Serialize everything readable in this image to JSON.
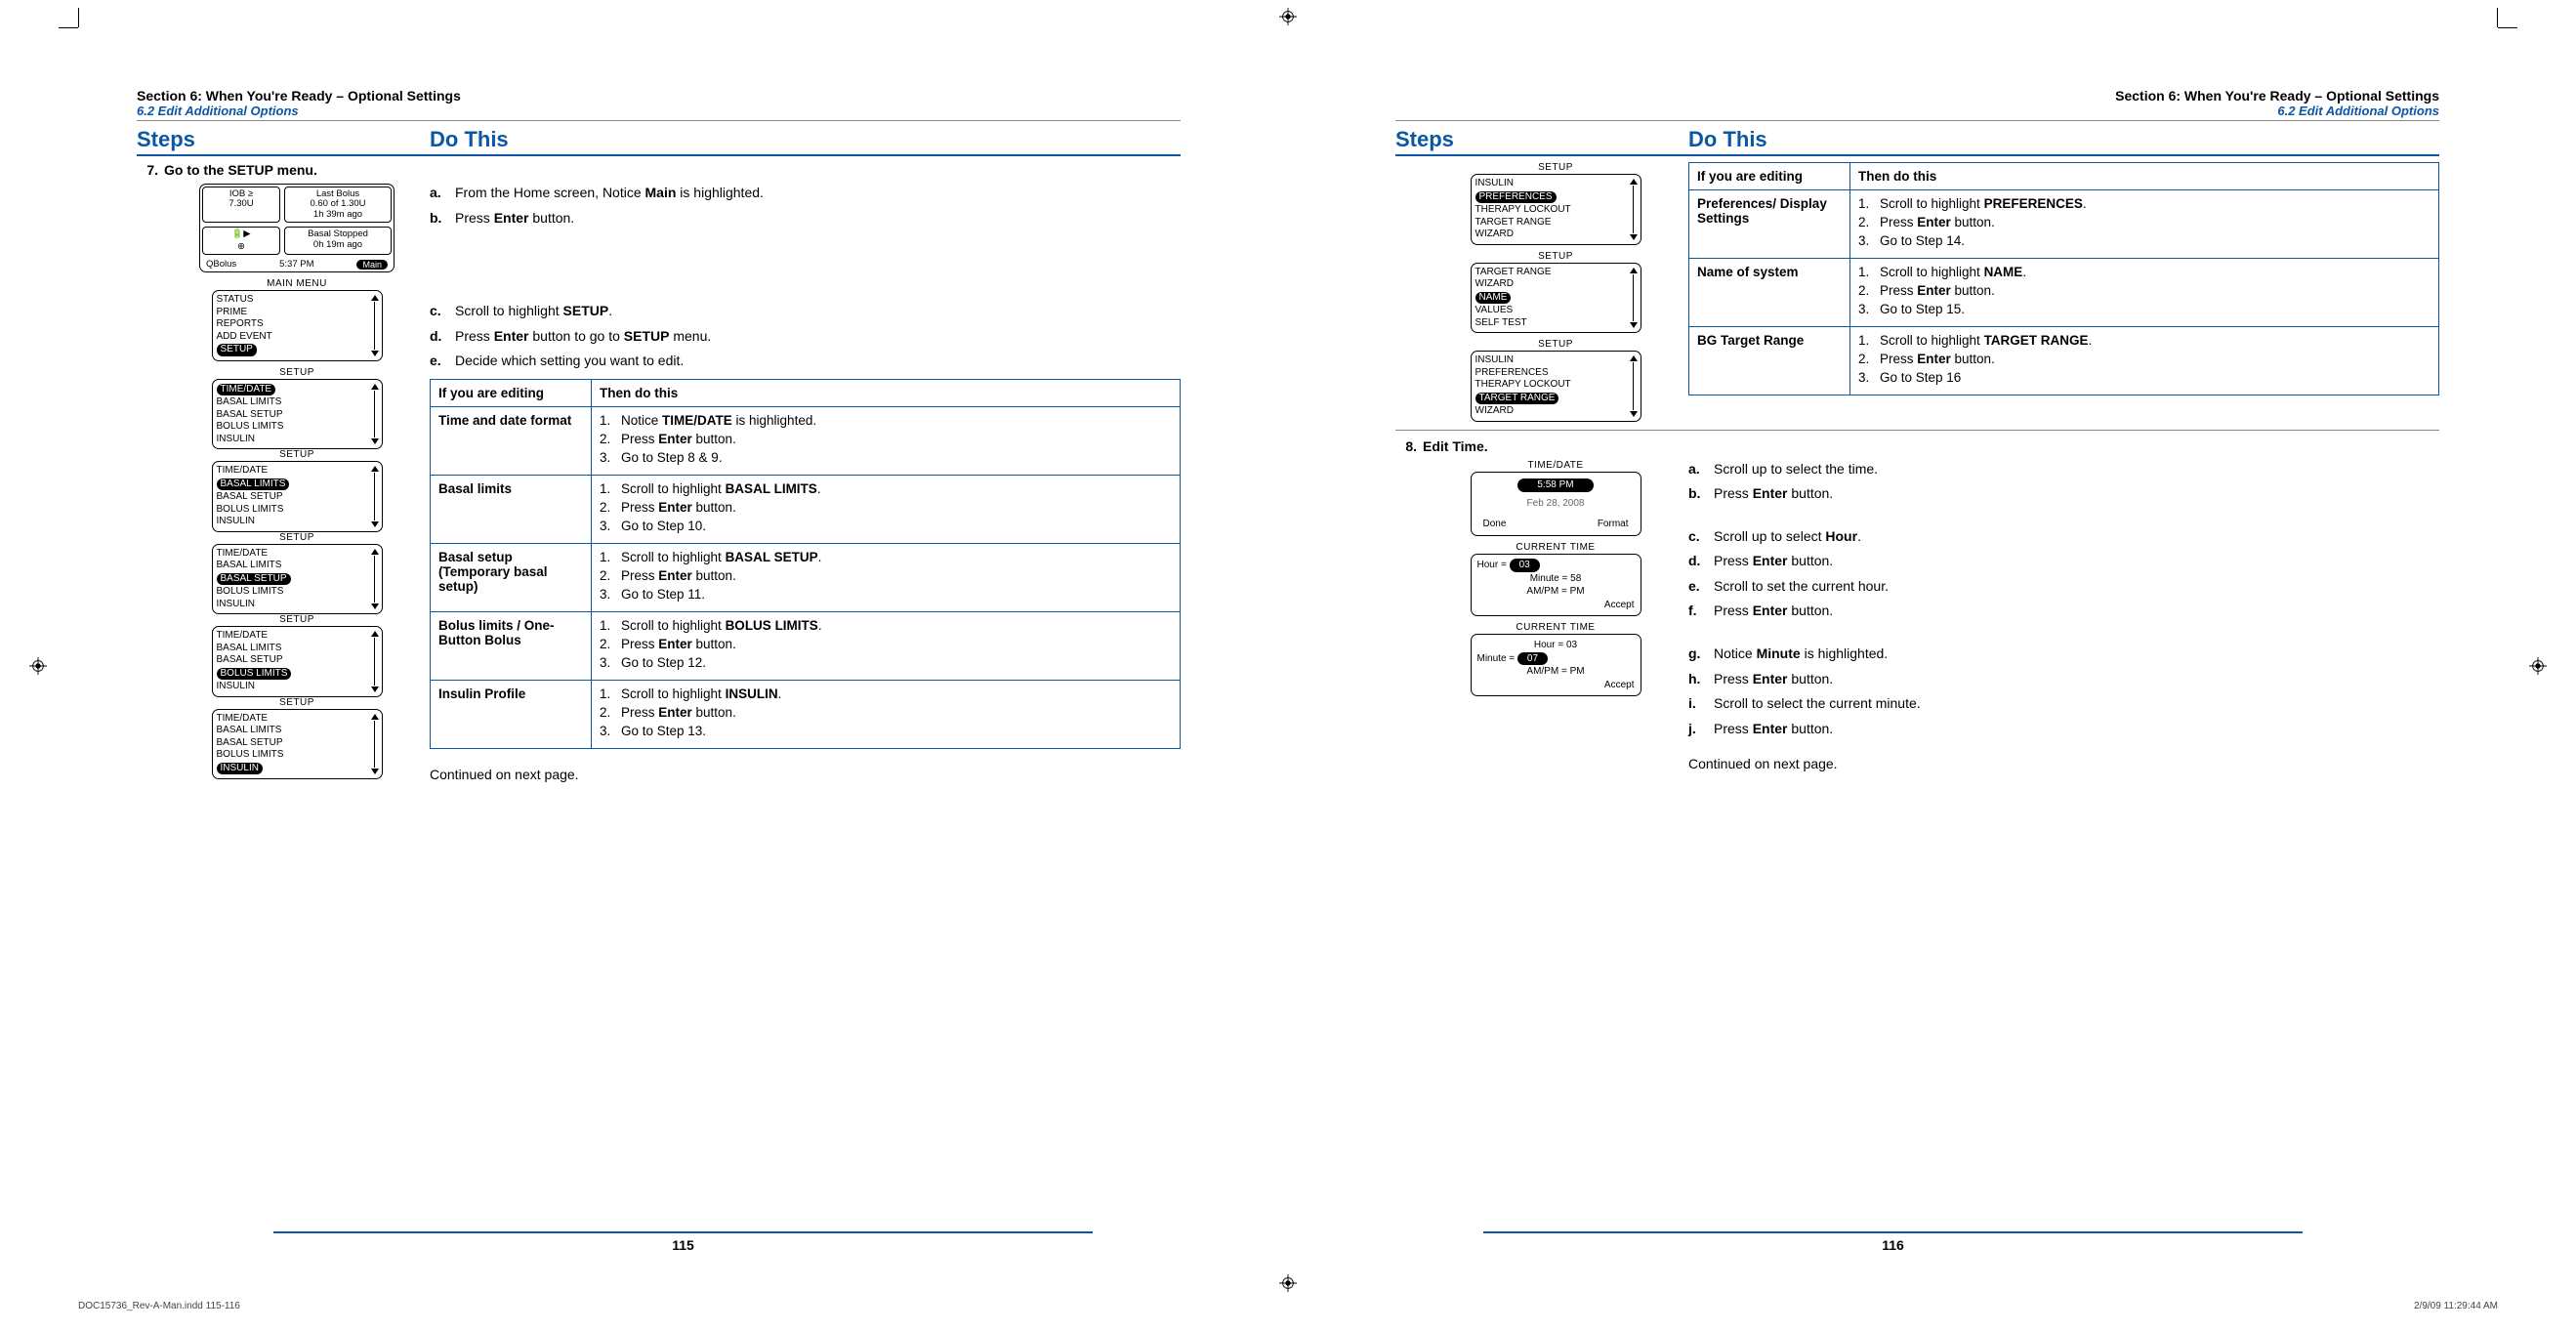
{
  "header": {
    "section": "Section 6: When You're Ready – Optional Settings",
    "subsection": "6.2 Edit Additional Options"
  },
  "colheads": {
    "steps": "Steps",
    "dothis": "Do This"
  },
  "left": {
    "step_num": "7.",
    "step_title": "Go to the SETUP menu.",
    "instr_ab": [
      {
        "l": "a.",
        "t_pre": "From the Home screen, Notice ",
        "t_b": "Main",
        "t_post": " is highlighted."
      },
      {
        "l": "b.",
        "t_pre": "Press ",
        "t_b": "Enter",
        "t_post": " button."
      }
    ],
    "instr_cde": [
      {
        "l": "c.",
        "t_pre": "Scroll to highlight ",
        "t_b": "SETUP",
        "t_post": "."
      },
      {
        "l": "d.",
        "t_pre": "Press ",
        "t_b": "Enter",
        "t_post": " button to go to ",
        "t_b2": "SETUP",
        "t_post2": " menu."
      },
      {
        "l": "e.",
        "t_pre": "Decide which setting you want to edit.",
        "t_b": "",
        "t_post": ""
      }
    ],
    "table": {
      "h1": "If you are editing",
      "h2": "Then do this",
      "rows": [
        {
          "label": "Time and date format",
          "steps": [
            {
              "n": "1.",
              "pre": "Notice ",
              "b": "TIME/DATE",
              "post": " is highlighted."
            },
            {
              "n": "2.",
              "pre": "Press ",
              "b": "Enter",
              "post": " button."
            },
            {
              "n": "3.",
              "pre": "Go to Step 8 & 9.",
              "b": "",
              "post": ""
            }
          ]
        },
        {
          "label": "Basal limits",
          "steps": [
            {
              "n": "1.",
              "pre": "Scroll to highlight ",
              "b": "BASAL LIMITS",
              "post": "."
            },
            {
              "n": "2.",
              "pre": "Press ",
              "b": "Enter",
              "post": " button."
            },
            {
              "n": "3.",
              "pre": "Go to Step 10.",
              "b": "",
              "post": ""
            }
          ]
        },
        {
          "label": "Basal setup (Temporary basal setup)",
          "steps": [
            {
              "n": "1.",
              "pre": "Scroll to highlight ",
              "b": "BASAL SETUP",
              "post": "."
            },
            {
              "n": "2.",
              "pre": "Press ",
              "b": "Enter",
              "post": " button."
            },
            {
              "n": "3.",
              "pre": "Go to Step 11.",
              "b": "",
              "post": ""
            }
          ]
        },
        {
          "label": "Bolus limits / One-Button Bolus",
          "steps": [
            {
              "n": "1.",
              "pre": "Scroll to highlight ",
              "b": "BOLUS LIMITS",
              "post": "."
            },
            {
              "n": "2.",
              "pre": "Press ",
              "b": "Enter",
              "post": " button."
            },
            {
              "n": "3.",
              "pre": "Go to Step 12.",
              "b": "",
              "post": ""
            }
          ]
        },
        {
          "label": "Insulin Profile",
          "steps": [
            {
              "n": "1.",
              "pre": "Scroll to highlight ",
              "b": "INSULIN",
              "post": "."
            },
            {
              "n": "2.",
              "pre": "Press ",
              "b": "Enter",
              "post": " button."
            },
            {
              "n": "3.",
              "pre": "Go to Step 13.",
              "b": "",
              "post": ""
            }
          ]
        }
      ]
    },
    "cont": "Continued on next page.",
    "page": "115",
    "screens": {
      "home": {
        "iob_label": "IOB ≥",
        "iob_val": "7.30U",
        "last_bolus_l1": "Last Bolus",
        "last_bolus_l2": "0.60 of 1.30U",
        "last_bolus_l3": "1h 39m ago",
        "basal_l1": "Basal Stopped",
        "basal_l2": "0h 19m ago",
        "bar_l": "QBolus",
        "bar_c": "5:37 PM",
        "bar_r": "Main"
      },
      "main_menu": {
        "title": "MAIN MENU",
        "items": [
          "STATUS",
          "PRIME",
          "REPORTS",
          "ADD EVENT"
        ],
        "sel": "SETUP"
      },
      "setup_list": [
        "TIME/DATE",
        "BASAL LIMITS",
        "BASAL SETUP",
        "BOLUS LIMITS",
        "INSULIN"
      ],
      "setup_title": "SETUP",
      "sel_by_screen": [
        "TIME/DATE",
        "BASAL LIMITS",
        "BASAL SETUP",
        "BOLUS LIMITS",
        "INSULIN"
      ]
    }
  },
  "right": {
    "table": {
      "h1": "If you are editing",
      "h2": "Then do this",
      "rows": [
        {
          "label": "Preferences/ Display Settings",
          "steps": [
            {
              "n": "1.",
              "pre": "Scroll to highlight ",
              "b": "PREFERENCES",
              "post": "."
            },
            {
              "n": "2.",
              "pre": "Press ",
              "b": "Enter",
              "post": " button."
            },
            {
              "n": "3.",
              "pre": "Go to Step 14.",
              "b": "",
              "post": ""
            }
          ]
        },
        {
          "label": "Name of system",
          "steps": [
            {
              "n": "1.",
              "pre": "Scroll to highlight ",
              "b": "NAME",
              "post": "."
            },
            {
              "n": "2.",
              "pre": "Press ",
              "b": "Enter",
              "post": " button."
            },
            {
              "n": "3.",
              "pre": "Go to Step 15.",
              "b": "",
              "post": ""
            }
          ]
        },
        {
          "label": "BG Target Range",
          "steps": [
            {
              "n": "1.",
              "pre": "Scroll to highlight ",
              "b": "TARGET RANGE",
              "post": "."
            },
            {
              "n": "2.",
              "pre": "Press ",
              "b": "Enter",
              "post": " button."
            },
            {
              "n": "3.",
              "pre": "Go to Step 16",
              "b": "",
              "post": ""
            }
          ]
        }
      ]
    },
    "screens_top": [
      {
        "title": "SETUP",
        "items": [
          "INSULIN",
          "PREFERENCES",
          "THERAPY LOCKOUT",
          "TARGET RANGE",
          "WIZARD"
        ],
        "sel": "PREFERENCES"
      },
      {
        "title": "SETUP",
        "items": [
          "TARGET RANGE",
          "WIZARD",
          "NAME",
          "VALUES",
          "SELF TEST"
        ],
        "sel": "NAME"
      },
      {
        "title": "SETUP",
        "items": [
          "INSULIN",
          "PREFERENCES",
          "THERAPY LOCKOUT",
          "TARGET RANGE",
          "WIZARD"
        ],
        "sel": "TARGET RANGE"
      }
    ],
    "step8_num": "8.",
    "step8_title": "Edit Time.",
    "instr8": [
      {
        "l": "a.",
        "t_pre": "Scroll up to select the time.",
        "t_b": "",
        "t_post": ""
      },
      {
        "l": "b.",
        "t_pre": "Press ",
        "t_b": "Enter",
        "t_post": " button."
      }
    ],
    "instr8b": [
      {
        "l": "c.",
        "t_pre": "Scroll up to select ",
        "t_b": "Hour",
        "t_post": "."
      },
      {
        "l": "d.",
        "t_pre": "Press ",
        "t_b": "Enter",
        "t_post": " button."
      },
      {
        "l": "e.",
        "t_pre": "Scroll to set the current hour.",
        "t_b": "",
        "t_post": ""
      },
      {
        "l": "f.",
        "t_pre": "Press ",
        "t_b": "Enter",
        "t_post": " button."
      }
    ],
    "instr8c": [
      {
        "l": "g.",
        "t_pre": "Notice ",
        "t_b": "Minute",
        "t_post": " is highlighted."
      },
      {
        "l": "h.",
        "t_pre": "Press ",
        "t_b": "Enter",
        "t_post": " button."
      },
      {
        "l": "i.",
        "t_pre": "Scroll to select the current minute.",
        "t_b": "",
        "t_post": ""
      },
      {
        "l": "j.",
        "t_pre": "Press ",
        "t_b": "Enter",
        "t_post": " button."
      }
    ],
    "td_screen": {
      "title": "TIME/DATE",
      "time": "5:58 PM",
      "date": "Feb 28, 2008",
      "done": "Done",
      "format": "Format"
    },
    "ct_screen1": {
      "title": "CURRENT TIME",
      "hour_l": "Hour =",
      "hour_v": "03",
      "min": "Minute = 58",
      "ampm": "AM/PM = PM",
      "accept": "Accept"
    },
    "ct_screen2": {
      "title": "CURRENT TIME",
      "hour": "Hour = 03",
      "min_l": "Minute =",
      "min_v": "07",
      "ampm": "AM/PM = PM",
      "accept": "Accept"
    },
    "cont": "Continued on next page.",
    "page": "116"
  },
  "footer": {
    "left": "DOC15736_Rev-A-Man.indd   115-116",
    "right": "2/9/09   11:29:44 AM"
  }
}
